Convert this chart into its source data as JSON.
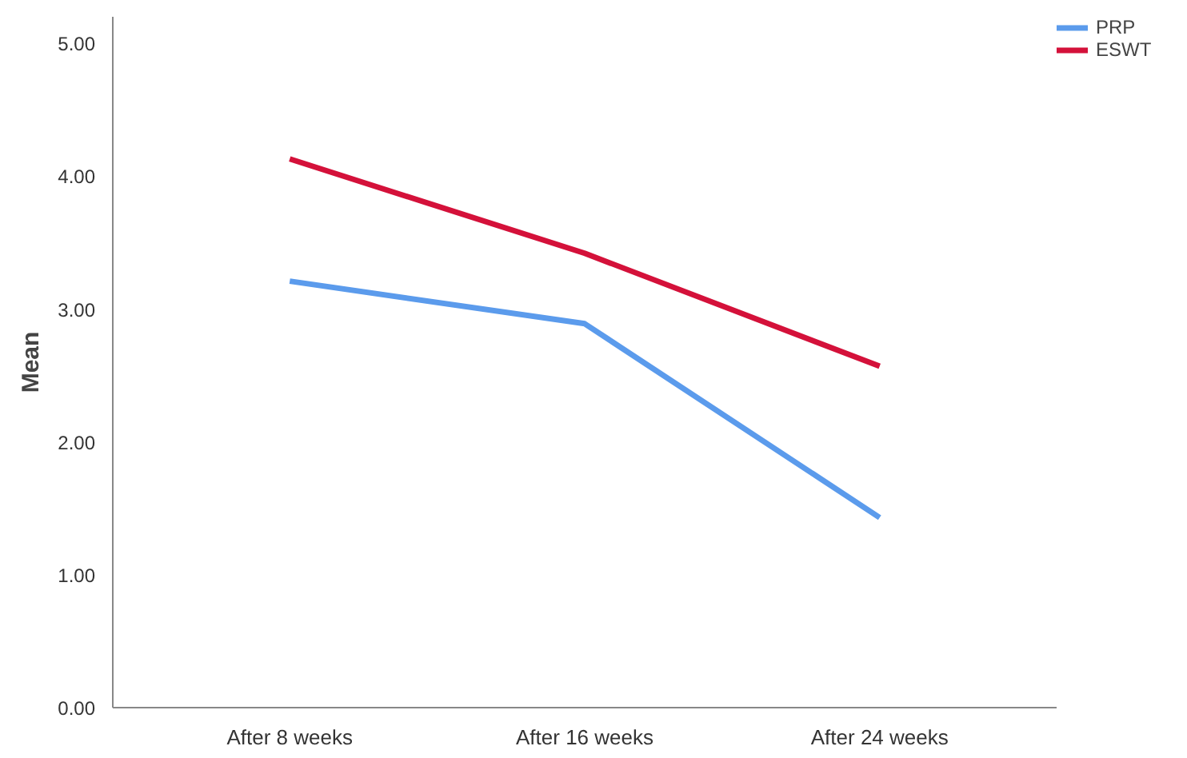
{
  "chart_data": {
    "type": "line",
    "ylabel": "Mean",
    "categories": [
      "After 8 weeks",
      "After 16 weeks",
      "After 24 weeks"
    ],
    "series": [
      {
        "name": "PRP",
        "color": "#5b9bec",
        "values": [
          3.21,
          2.89,
          1.43
        ]
      },
      {
        "name": "ESWT",
        "color": "#d4113a",
        "values": [
          4.13,
          3.42,
          2.57
        ]
      }
    ],
    "ylim": [
      0,
      5.2
    ],
    "yticks": [
      {
        "value": 0,
        "label": "0.00"
      },
      {
        "value": 1,
        "label": "1.00"
      },
      {
        "value": 2,
        "label": "2.00"
      },
      {
        "value": 3,
        "label": "3.00"
      },
      {
        "value": 4,
        "label": "4.00"
      },
      {
        "value": 5,
        "label": "5.00"
      }
    ],
    "grid": false,
    "legend": "top right",
    "marker": "none",
    "line_style": "solid"
  }
}
